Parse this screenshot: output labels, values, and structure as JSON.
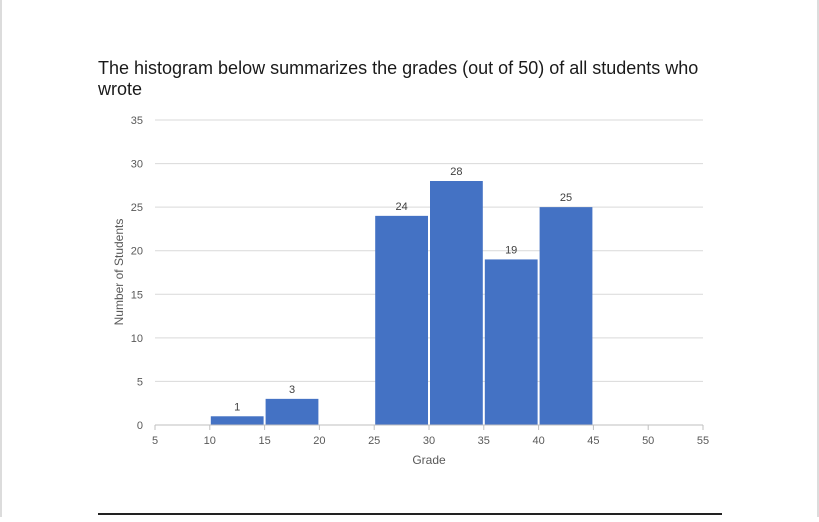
{
  "intro_text": "The histogram below summarizes the grades (out of 50) of all students who wrote",
  "chart_data": {
    "type": "bar",
    "xlabel": "Grade",
    "ylabel": "Number of Students",
    "xlim": [
      5,
      55
    ],
    "ylim": [
      0,
      35
    ],
    "x_ticks": [
      5,
      10,
      15,
      20,
      25,
      30,
      35,
      40,
      45,
      50,
      55
    ],
    "y_ticks": [
      0,
      5,
      10,
      15,
      20,
      25,
      30,
      35
    ],
    "grid": true,
    "bins": [
      {
        "start": 10,
        "end": 15,
        "value": 1
      },
      {
        "start": 15,
        "end": 20,
        "value": 3
      },
      {
        "start": 25,
        "end": 30,
        "value": 24
      },
      {
        "start": 30,
        "end": 35,
        "value": 28
      },
      {
        "start": 35,
        "end": 40,
        "value": 19
      },
      {
        "start": 40,
        "end": 45,
        "value": 25
      }
    ],
    "bar_color": "#4472c4",
    "grid_color": "#d9d9d9",
    "text_color": "#595959"
  }
}
